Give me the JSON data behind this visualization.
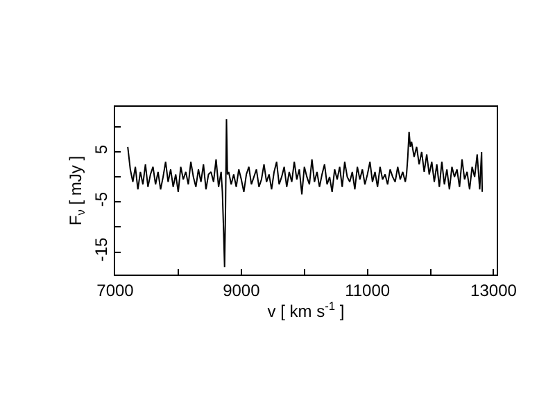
{
  "chart_data": {
    "type": "line",
    "xlabel": "v [ km s$^{-1}$ ]",
    "ylabel": "F$_{ν}$ [ mJy ]",
    "xlim": [
      7000,
      13050
    ],
    "xticks": [
      7000,
      {
        "value": 8000,
        "label": null
      },
      9000,
      {
        "value": 10000,
        "label": null
      },
      11000,
      {
        "value": 12000,
        "label": null
      },
      13000
    ],
    "ylim": [
      -19.5,
      14
    ],
    "yticks": [
      {
        "value": 10,
        "label": null
      },
      5,
      {
        "value": 0,
        "label": null
      },
      -5,
      {
        "value": -10,
        "label": null
      },
      -15
    ],
    "marker": "none",
    "line_style": "solid",
    "series": [
      {
        "color": "#000000",
        "x": [
          7200,
          7240,
          7280,
          7320,
          7360,
          7400,
          7440,
          7480,
          7520,
          7560,
          7600,
          7640,
          7680,
          7720,
          7760,
          7800,
          7840,
          7880,
          7920,
          7960,
          8000,
          8040,
          8080,
          8120,
          8160,
          8200,
          8240,
          8280,
          8320,
          8360,
          8400,
          8440,
          8480,
          8520,
          8560,
          8600,
          8640,
          8680,
          8700,
          8720,
          8735,
          8750,
          8765,
          8780,
          8800,
          8840,
          8880,
          8920,
          8960,
          9000,
          9040,
          9080,
          9120,
          9160,
          9200,
          9240,
          9280,
          9320,
          9360,
          9400,
          9440,
          9480,
          9520,
          9560,
          9600,
          9640,
          9680,
          9720,
          9760,
          9800,
          9840,
          9880,
          9920,
          9960,
          10000,
          10040,
          10080,
          10120,
          10160,
          10200,
          10240,
          10280,
          10320,
          10360,
          10400,
          10440,
          10480,
          10520,
          10560,
          10600,
          10640,
          10680,
          10720,
          10760,
          10800,
          10840,
          10880,
          10920,
          10960,
          11000,
          11040,
          11080,
          11120,
          11160,
          11200,
          11240,
          11280,
          11320,
          11360,
          11400,
          11440,
          11480,
          11520,
          11560,
          11600,
          11620,
          11640,
          11660,
          11680,
          11700,
          11740,
          11780,
          11820,
          11860,
          11900,
          11940,
          11980,
          12020,
          12060,
          12100,
          12140,
          12180,
          12220,
          12260,
          12300,
          12340,
          12380,
          12420,
          12460,
          12500,
          12540,
          12580,
          12620,
          12660,
          12700,
          12740,
          12780,
          12810,
          12820
        ],
        "values": [
          6,
          1.5,
          -1,
          2,
          -2.5,
          1,
          -1.5,
          2.5,
          -2,
          0.5,
          2,
          -1.5,
          1,
          -2.5,
          0,
          3,
          -1,
          1.5,
          -2,
          0.5,
          -3,
          2,
          -0.5,
          1,
          -1.5,
          3,
          0,
          -2,
          1.5,
          -1,
          2.5,
          -2.5,
          0.5,
          1,
          -1,
          3.5,
          -2,
          1,
          -3,
          -11,
          -18,
          -6,
          11.5,
          0.5,
          1,
          -1.5,
          0.5,
          -2,
          1.5,
          -0.5,
          -3,
          0.5,
          2,
          -1.5,
          0,
          1.5,
          -2,
          -0.5,
          2.5,
          -1,
          0.5,
          -2.5,
          1,
          3,
          -1.5,
          0,
          2,
          -2,
          1,
          -1,
          3,
          -0.5,
          1.5,
          -3.5,
          2,
          0,
          -1.5,
          3.5,
          -1,
          1,
          -2,
          0.5,
          2.5,
          -1.5,
          0,
          -3,
          1.5,
          -0.5,
          2,
          -2,
          3,
          0,
          -1,
          1,
          -2.5,
          2,
          -0.5,
          1.5,
          -1.5,
          0.5,
          3,
          -1,
          1,
          -2,
          2,
          -0.5,
          0.5,
          -1.5,
          1.5,
          0,
          -1,
          2,
          -0.5,
          1,
          -1,
          0.5,
          4,
          9,
          6,
          7,
          4,
          6,
          2.5,
          5,
          1,
          4.5,
          0.5,
          3,
          -1,
          2.5,
          -2,
          3,
          -1.5,
          1.5,
          -2.5,
          2,
          0,
          1.5,
          -2,
          3.5,
          -0.5,
          1,
          -2.5,
          2,
          0,
          4.5,
          -2.5,
          5,
          -3
        ]
      }
    ]
  }
}
